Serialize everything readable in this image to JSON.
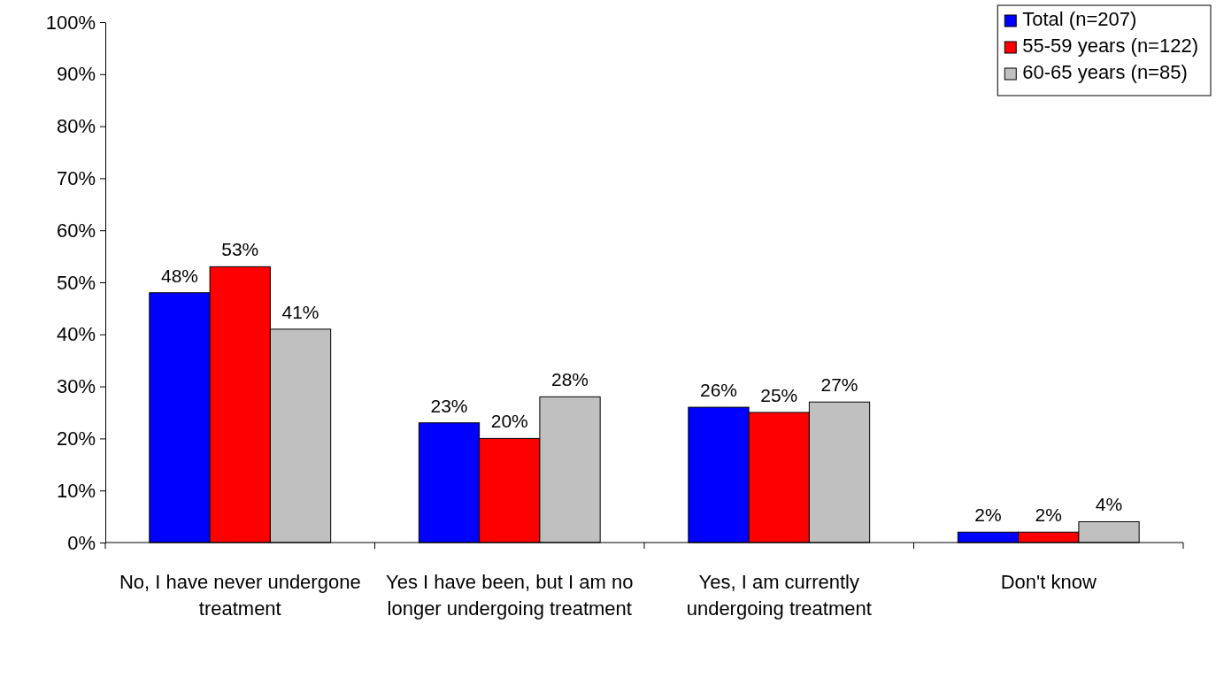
{
  "chart_data": {
    "type": "bar",
    "categories": [
      "No, I have never undergone treatment",
      "Yes I have been, but I am no longer undergoing treatment",
      "Yes, I am currently undergoing treatment",
      "Don't know"
    ],
    "series": [
      {
        "name": "Total (n=207)",
        "color": "#0000ff",
        "values": [
          48,
          23,
          26,
          2
        ],
        "value_labels": [
          "48%",
          "23%",
          "26%",
          "2%"
        ]
      },
      {
        "name": "55-59 years (n=122)",
        "color": "#ff0000",
        "values": [
          53,
          20,
          25,
          2
        ],
        "value_labels": [
          "53%",
          "20%",
          "25%",
          "2%"
        ]
      },
      {
        "name": "60-65 years (n=85)",
        "color": "#c0c0c0",
        "values": [
          41,
          28,
          27,
          4
        ],
        "value_labels": [
          "41%",
          "28%",
          "27%",
          "4%"
        ]
      }
    ],
    "ylim": [
      0,
      100
    ],
    "yticks": [
      {
        "value": 0,
        "label": "0%"
      },
      {
        "value": 10,
        "label": "10%"
      },
      {
        "value": 20,
        "label": "20%"
      },
      {
        "value": 30,
        "label": "30%"
      },
      {
        "value": 40,
        "label": "40%"
      },
      {
        "value": 50,
        "label": "50%"
      },
      {
        "value": 60,
        "label": "60%"
      },
      {
        "value": 70,
        "label": "70%"
      },
      {
        "value": 80,
        "label": "80%"
      },
      {
        "value": 90,
        "label": "90%"
      },
      {
        "value": 100,
        "label": "100%"
      }
    ],
    "grid": false,
    "legend": "top right"
  }
}
